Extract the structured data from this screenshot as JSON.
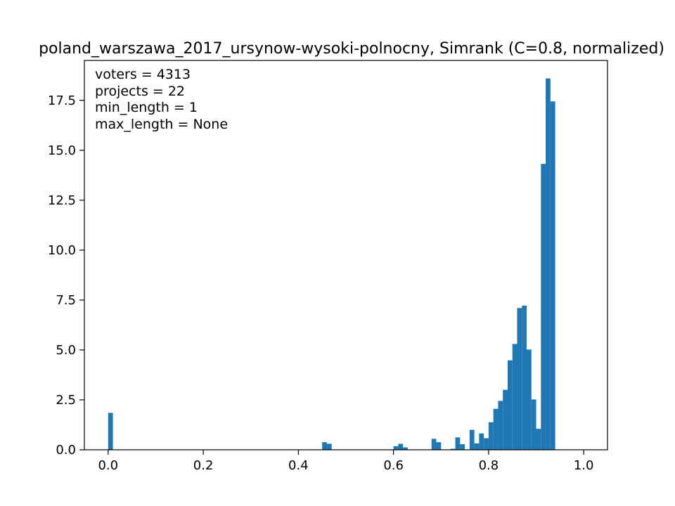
{
  "chart_data": {
    "type": "bar",
    "title": "poland_warszawa_2017_ursynow-wysoki-polnocny, Simrank (C=0.8, normalized)",
    "xlabel": "",
    "ylabel": "",
    "xlim": [
      -0.05,
      1.05
    ],
    "ylim": [
      0,
      19.5
    ],
    "x_ticks": [
      0.0,
      0.2,
      0.4,
      0.6,
      0.8,
      1.0
    ],
    "x_tick_labels": [
      "0.0",
      "0.2",
      "0.4",
      "0.6",
      "0.8",
      "1.0"
    ],
    "y_ticks": [
      0.0,
      2.5,
      5.0,
      7.5,
      10.0,
      12.5,
      15.0,
      17.5
    ],
    "y_tick_labels": [
      "0.0",
      "2.5",
      "5.0",
      "7.5",
      "10.0",
      "12.5",
      "15.0",
      "17.5"
    ],
    "grid": false,
    "bar_color": "#1f77b4",
    "annotations": [
      "voters = 4313",
      "projects = 22",
      "min_length = 1",
      "max_length = None"
    ],
    "bins": [
      {
        "x0": 0.0,
        "x1": 0.01,
        "value": 1.85
      },
      {
        "x0": 0.45,
        "x1": 0.46,
        "value": 0.38
      },
      {
        "x0": 0.46,
        "x1": 0.47,
        "value": 0.3
      },
      {
        "x0": 0.6,
        "x1": 0.61,
        "value": 0.18
      },
      {
        "x0": 0.61,
        "x1": 0.62,
        "value": 0.3
      },
      {
        "x0": 0.62,
        "x1": 0.63,
        "value": 0.12
      },
      {
        "x0": 0.68,
        "x1": 0.69,
        "value": 0.55
      },
      {
        "x0": 0.69,
        "x1": 0.7,
        "value": 0.38
      },
      {
        "x0": 0.72,
        "x1": 0.73,
        "value": 0.05
      },
      {
        "x0": 0.73,
        "x1": 0.74,
        "value": 0.62
      },
      {
        "x0": 0.74,
        "x1": 0.75,
        "value": 0.28
      },
      {
        "x0": 0.76,
        "x1": 0.77,
        "value": 1.0
      },
      {
        "x0": 0.77,
        "x1": 0.78,
        "value": 0.32
      },
      {
        "x0": 0.78,
        "x1": 0.79,
        "value": 0.82
      },
      {
        "x0": 0.79,
        "x1": 0.8,
        "value": 0.58
      },
      {
        "x0": 0.8,
        "x1": 0.81,
        "value": 1.38
      },
      {
        "x0": 0.81,
        "x1": 0.82,
        "value": 2.05
      },
      {
        "x0": 0.82,
        "x1": 0.83,
        "value": 2.45
      },
      {
        "x0": 0.83,
        "x1": 0.84,
        "value": 3.0
      },
      {
        "x0": 0.84,
        "x1": 0.85,
        "value": 4.48
      },
      {
        "x0": 0.85,
        "x1": 0.86,
        "value": 5.3
      },
      {
        "x0": 0.86,
        "x1": 0.87,
        "value": 7.1
      },
      {
        "x0": 0.87,
        "x1": 0.88,
        "value": 7.22
      },
      {
        "x0": 0.88,
        "x1": 0.89,
        "value": 5.02
      },
      {
        "x0": 0.89,
        "x1": 0.9,
        "value": 2.52
      },
      {
        "x0": 0.9,
        "x1": 0.91,
        "value": 1.05
      },
      {
        "x0": 0.91,
        "x1": 0.92,
        "value": 14.32
      },
      {
        "x0": 0.92,
        "x1": 0.93,
        "value": 18.6
      },
      {
        "x0": 0.93,
        "x1": 0.94,
        "value": 17.45
      }
    ]
  }
}
